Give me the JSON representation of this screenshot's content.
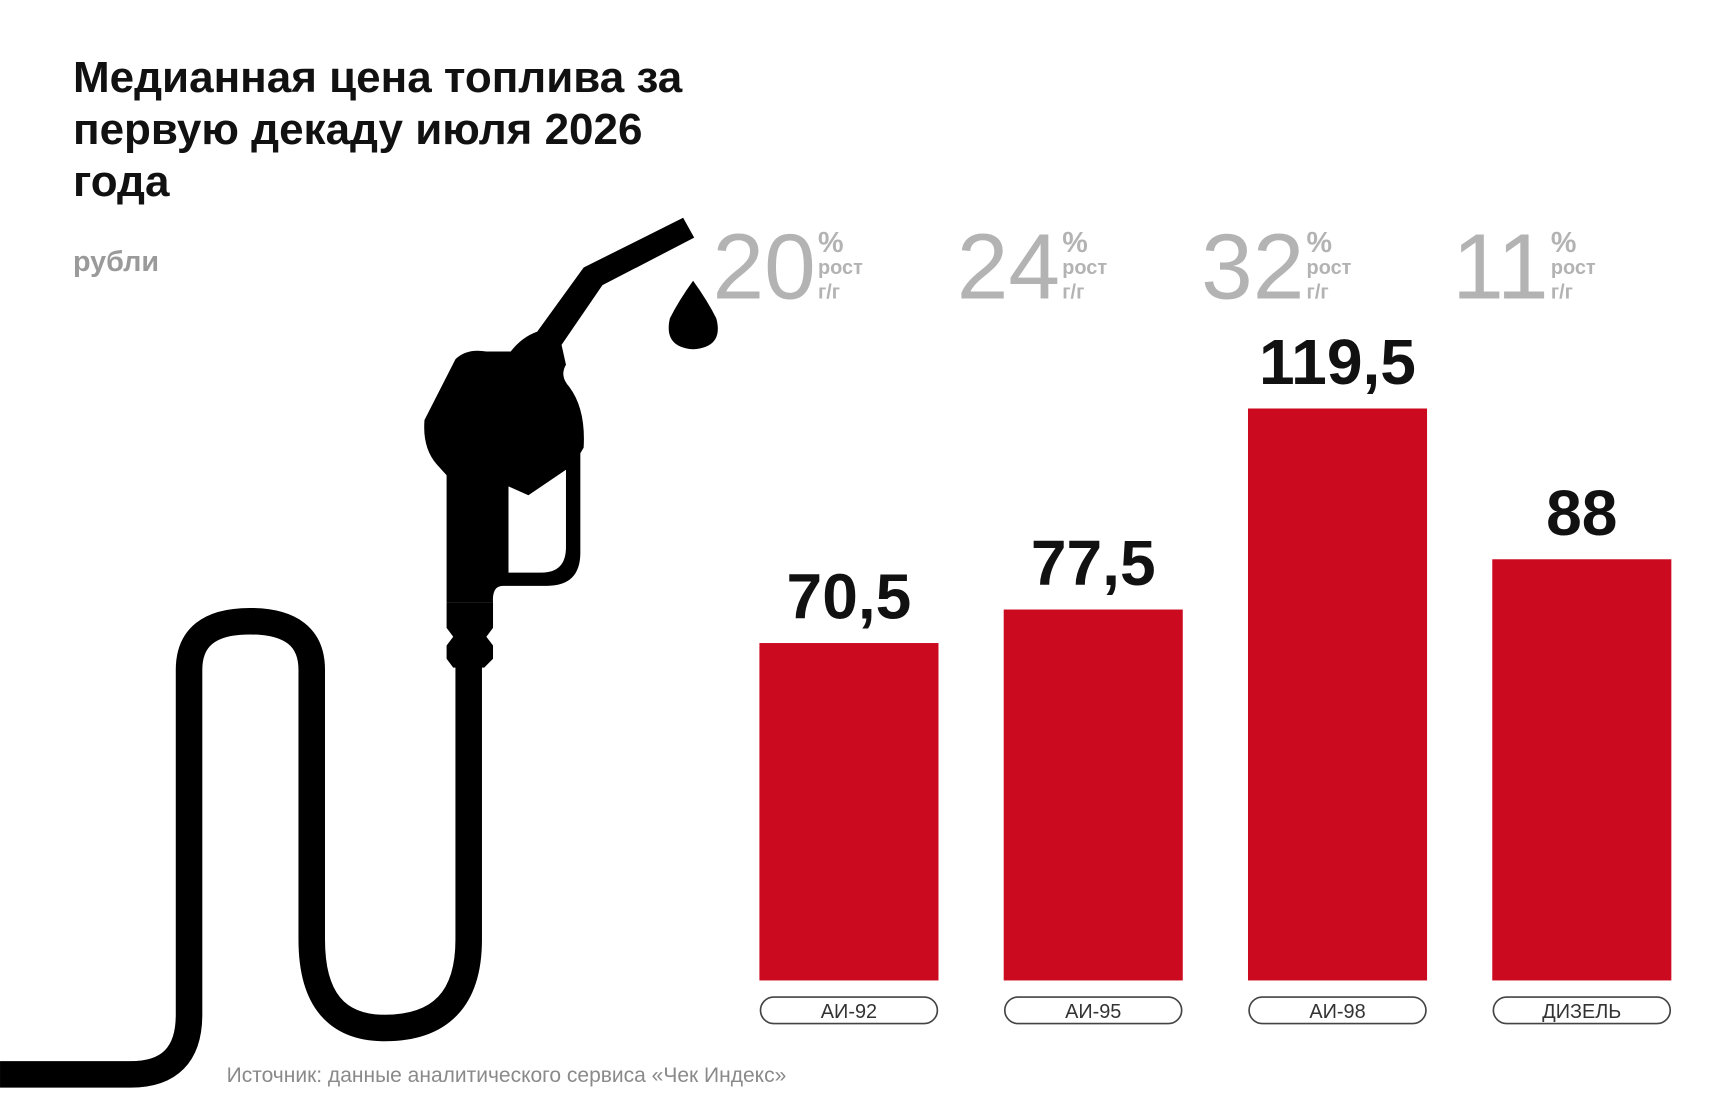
{
  "chart_data": {
    "type": "bar",
    "title": "Медианная цена топлива за первую декаду июля 2026 года",
    "subtitle": "рубли",
    "categories": [
      "АИ-92",
      "АИ-95",
      "АИ-98",
      "ДИЗЕЛЬ"
    ],
    "values": [
      70.5,
      77.5,
      119.5,
      88
    ],
    "value_labels": [
      "70,5",
      "77,5",
      "119,5",
      "88"
    ],
    "color": "#cc0a1f",
    "growth": {
      "values": [
        20,
        24,
        32,
        11
      ],
      "unit": "%",
      "label_lines": [
        "рост",
        "г/г"
      ]
    },
    "source": "Источник: данные аналитического сервиса «Чек Индекс»"
  }
}
